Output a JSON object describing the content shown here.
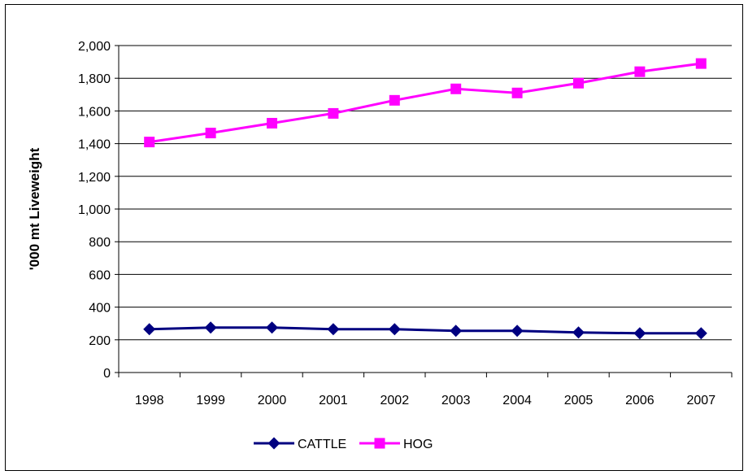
{
  "chart_data": {
    "type": "line",
    "title": "",
    "xlabel": "",
    "ylabel": "'000 mt Liveweight",
    "categories": [
      "1998",
      "1999",
      "2000",
      "2001",
      "2002",
      "2003",
      "2004",
      "2005",
      "2006",
      "2007"
    ],
    "ylim": [
      0,
      2000
    ],
    "yticks": [
      0,
      200,
      400,
      600,
      800,
      1000,
      1200,
      1400,
      1600,
      1800,
      2000
    ],
    "ytick_labels": [
      "0",
      "200",
      "400",
      "600",
      "800",
      "1,000",
      "1,200",
      "1,400",
      "1,600",
      "1,800",
      "2,000"
    ],
    "grid": "horizontal",
    "legend_position": "bottom",
    "series": [
      {
        "name": "CATTLE",
        "color": "#000080",
        "marker": "diamond",
        "values": [
          265,
          275,
          275,
          265,
          265,
          255,
          255,
          245,
          240,
          240
        ]
      },
      {
        "name": "HOG",
        "color": "#ff00ff",
        "marker": "square",
        "values": [
          1410,
          1465,
          1525,
          1585,
          1665,
          1735,
          1710,
          1770,
          1840,
          1890
        ]
      }
    ]
  }
}
